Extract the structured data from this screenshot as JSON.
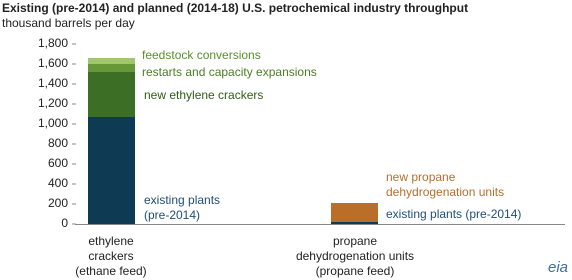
{
  "chart_data": {
    "type": "bar",
    "stacked": true,
    "title": "Existing  (pre-2014)  and  planned  (2014-18)  U.S. petrochemical  industry  throughput",
    "subtitle": "thousand barrels per day",
    "categories": [
      [
        "ethylene",
        "crackers",
        "(ethane feed)"
      ],
      [
        "propane",
        "dehydrogenation units",
        "(propane feed)"
      ]
    ],
    "series": [
      {
        "name": "existing plants (pre-2014)",
        "color": "#0e3a54",
        "values": [
          1070,
          20
        ]
      },
      {
        "name": "new ethylene crackers",
        "color": "#3d6e25",
        "values": [
          450,
          null
        ]
      },
      {
        "name": "restarts and capacity expansions",
        "color": "#66983a",
        "values": [
          80,
          null
        ]
      },
      {
        "name": "feedstock conversions",
        "color": "#a2c66e",
        "values": [
          60,
          null
        ]
      },
      {
        "color": "#b96f2a",
        "values": [
          null,
          190
        ]
      }
    ],
    "annotations": [
      "existing plants",
      "(pre-2014)",
      "new propane",
      "dehydrogenation  units"
    ],
    "ylim": [
      0,
      1800
    ],
    "yticks": [
      0,
      200,
      400,
      600,
      800,
      {
        "value": 1000,
        "label": "1,000"
      },
      {
        "value": 1200,
        "label": "1,200"
      },
      {
        "value": 1400,
        "label": "1,400"
      },
      {
        "value": 1600,
        "label": "1,600"
      },
      {
        "value": 1800,
        "label": "1,800"
      }
    ],
    "logo": "eia"
  }
}
